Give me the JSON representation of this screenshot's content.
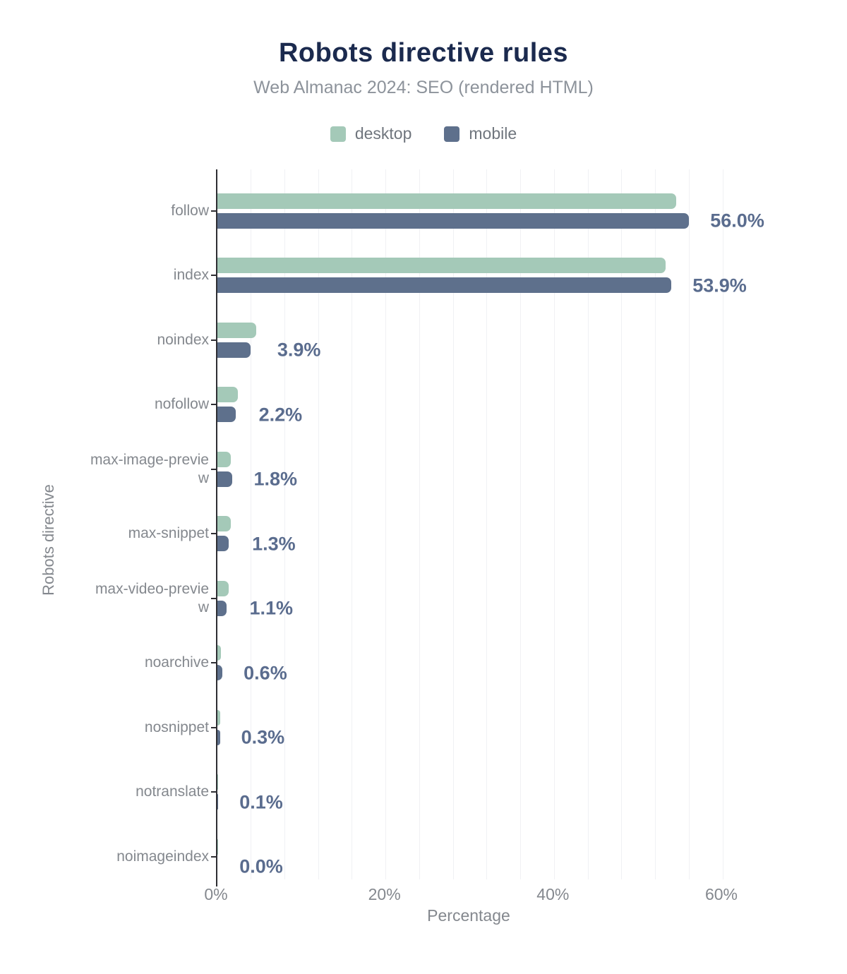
{
  "title": "Robots directive rules",
  "subtitle": "Web Almanac 2024: SEO (rendered HTML)",
  "legend": {
    "items": [
      {
        "label": "desktop",
        "color": "#a4c9b8"
      },
      {
        "label": "mobile",
        "color": "#5e708c"
      }
    ]
  },
  "colors": {
    "title": "#1b2a4e",
    "subtitle": "#8d939b",
    "axis_text": "#84888e",
    "axis_line": "#2e2e33",
    "gridline": "#f0f1f4",
    "value_label": "#5a6c8e",
    "desktop_bar": "#a4c9b8",
    "mobile_bar": "#5e708c",
    "background": "#ffffff"
  },
  "chart_data": {
    "type": "bar",
    "orientation": "horizontal",
    "title": "Robots directive rules",
    "subtitle": "Web Almanac 2024: SEO (rendered HTML)",
    "xlabel": "Percentage",
    "ylabel": "Robots directive",
    "xlim": [
      0,
      60
    ],
    "grid": true,
    "gridline_step_pct": 4,
    "legend_position": "top",
    "x_ticks": [
      {
        "label": "0%",
        "value": 0
      },
      {
        "label": "20%",
        "value": 20
      },
      {
        "label": "40%",
        "value": 40
      },
      {
        "label": "60%",
        "value": 60
      }
    ],
    "categories": [
      "follow",
      "index",
      "noindex",
      "nofollow",
      "max-image-preview",
      "max-snippet",
      "max-video-preview",
      "noarchive",
      "nosnippet",
      "notranslate",
      "noimageindex"
    ],
    "series": [
      {
        "name": "desktop",
        "color": "#a4c9b8",
        "values": [
          54.5,
          53.2,
          4.6,
          2.4,
          1.6,
          1.6,
          1.3,
          0.4,
          0.3,
          0.1,
          0.1
        ]
      },
      {
        "name": "mobile",
        "color": "#5e708c",
        "values": [
          56.0,
          53.9,
          3.9,
          2.2,
          1.8,
          1.3,
          1.1,
          0.6,
          0.3,
          0.1,
          0.0
        ]
      }
    ],
    "value_labels": [
      "56.0%",
      "53.9%",
      "3.9%",
      "2.2%",
      "1.8%",
      "1.3%",
      "1.1%",
      "0.6%",
      "0.3%",
      "0.1%",
      "0.0%"
    ]
  }
}
